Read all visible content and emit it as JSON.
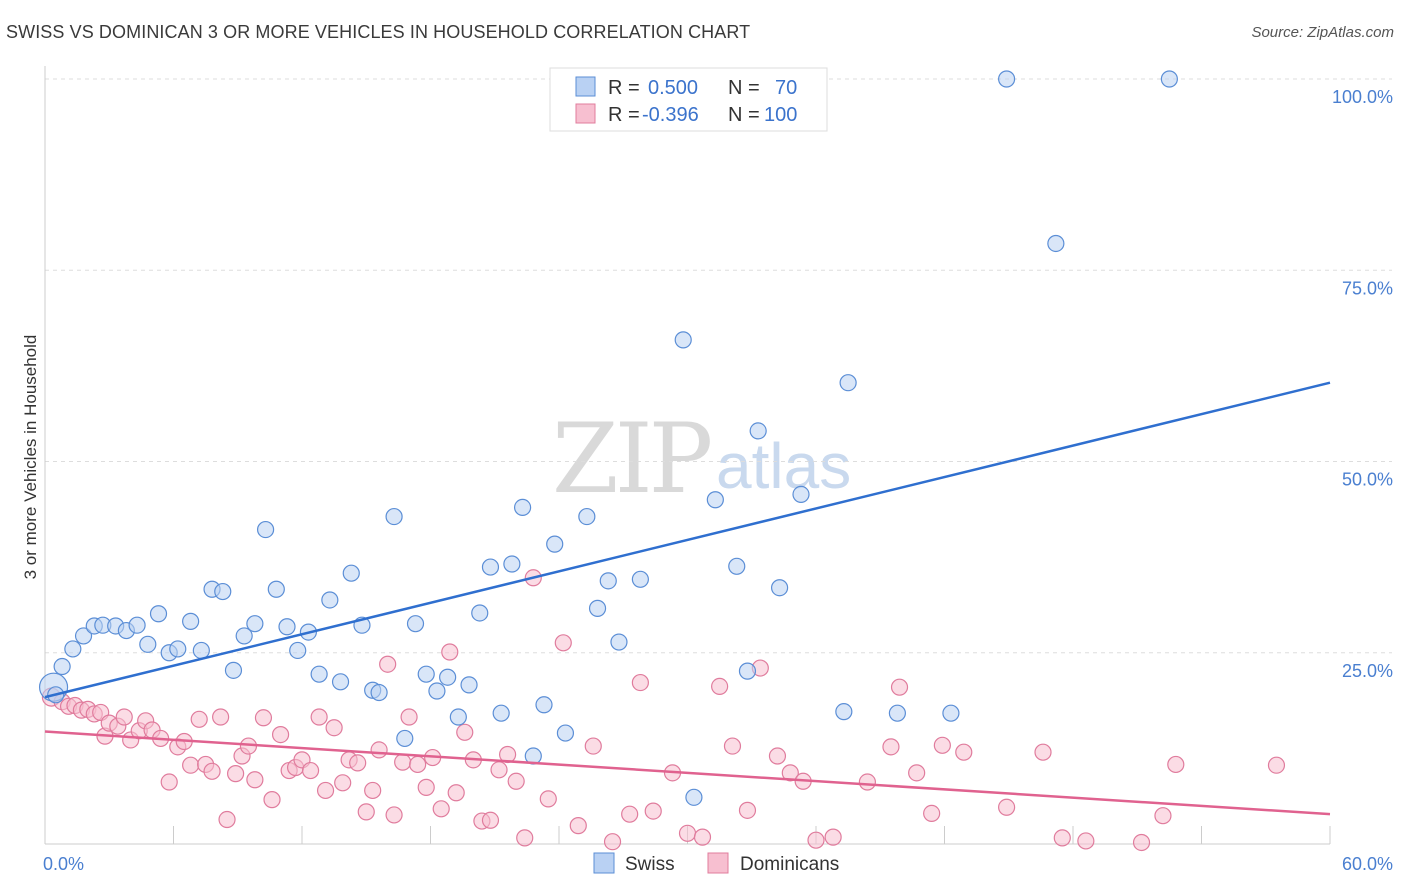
{
  "header": {
    "title": "SWISS VS DOMINICAN 3 OR MORE VEHICLES IN HOUSEHOLD CORRELATION CHART",
    "source": "Source: ZipAtlas.com"
  },
  "watermark": {
    "zip": "ZIP",
    "atlas": "atlas"
  },
  "colors": {
    "swiss_fill": "#b9d1f3",
    "swiss_stroke": "#5b8ed6",
    "swiss_line": "#2f6fcf",
    "dom_fill": "#f7bfd0",
    "dom_stroke": "#e07c9d",
    "dom_line": "#e0628f",
    "grid": "#dddddd",
    "axis_label": "#4a7fd0"
  },
  "chart_data": {
    "type": "scatter",
    "title": "SWISS VS DOMINICAN 3 OR MORE VEHICLES IN HOUSEHOLD CORRELATION CHART",
    "xlabel": "",
    "ylabel": "3 or more Vehicles in Household",
    "xlim": [
      0,
      60
    ],
    "ylim": [
      0,
      100
    ],
    "x_tick_labels": [
      "0.0%",
      "60.0%"
    ],
    "y_ticks": [
      25,
      50,
      75,
      100
    ],
    "y_tick_labels": [
      "25.0%",
      "50.0%",
      "75.0%",
      "100.0%"
    ],
    "grid": true,
    "legend": {
      "position": "top-center",
      "entries": [
        {
          "name": "Swiss",
          "r_label": "R =",
          "r": "0.500",
          "n_label": "N =",
          "n": "70"
        },
        {
          "name": "Dominicans",
          "r_label": "R =",
          "r": "-0.396",
          "n_label": "N =",
          "n": "100"
        }
      ]
    },
    "series": [
      {
        "name": "Swiss",
        "trend": {
          "x": [
            0,
            60
          ],
          "y": [
            19.2,
            60.3
          ]
        },
        "points": [
          [
            0.4,
            20.5
          ],
          [
            0.5,
            19.5
          ],
          [
            0.8,
            23.2
          ],
          [
            1.3,
            25.5
          ],
          [
            1.8,
            27.2
          ],
          [
            2.3,
            28.5
          ],
          [
            2.7,
            28.6
          ],
          [
            3.3,
            28.5
          ],
          [
            3.8,
            27.9
          ],
          [
            4.3,
            28.6
          ],
          [
            4.8,
            26.1
          ],
          [
            5.3,
            30.1
          ],
          [
            5.8,
            25.0
          ],
          [
            6.2,
            25.5
          ],
          [
            6.8,
            29.1
          ],
          [
            7.3,
            25.3
          ],
          [
            7.8,
            33.3
          ],
          [
            8.3,
            33.0
          ],
          [
            8.8,
            22.7
          ],
          [
            9.3,
            27.2
          ],
          [
            9.8,
            28.8
          ],
          [
            10.3,
            41.1
          ],
          [
            10.8,
            33.3
          ],
          [
            11.3,
            28.4
          ],
          [
            11.8,
            25.3
          ],
          [
            12.3,
            27.7
          ],
          [
            12.8,
            22.2
          ],
          [
            13.3,
            31.9
          ],
          [
            13.8,
            21.2
          ],
          [
            14.3,
            35.4
          ],
          [
            14.8,
            28.6
          ],
          [
            15.3,
            20.1
          ],
          [
            15.6,
            19.8
          ],
          [
            16.3,
            42.8
          ],
          [
            16.8,
            13.8
          ],
          [
            17.3,
            28.8
          ],
          [
            17.8,
            22.2
          ],
          [
            18.3,
            20.0
          ],
          [
            18.8,
            21.8
          ],
          [
            19.3,
            16.6
          ],
          [
            19.8,
            20.8
          ],
          [
            20.3,
            30.2
          ],
          [
            20.8,
            36.2
          ],
          [
            21.3,
            17.1
          ],
          [
            21.8,
            36.6
          ],
          [
            22.3,
            44.0
          ],
          [
            22.8,
            11.5
          ],
          [
            23.3,
            18.2
          ],
          [
            23.8,
            39.2
          ],
          [
            24.3,
            14.5
          ],
          [
            25.3,
            42.8
          ],
          [
            25.8,
            30.8
          ],
          [
            26.3,
            34.4
          ],
          [
            26.8,
            26.4
          ],
          [
            27.8,
            34.6
          ],
          [
            29.8,
            65.9
          ],
          [
            30.3,
            6.1
          ],
          [
            31.3,
            45.0
          ],
          [
            32.3,
            36.3
          ],
          [
            32.8,
            22.6
          ],
          [
            33.3,
            54.0
          ],
          [
            34.3,
            33.5
          ],
          [
            35.3,
            45.7
          ],
          [
            37.5,
            60.3
          ],
          [
            37.3,
            17.3
          ],
          [
            39.8,
            17.1
          ],
          [
            42.3,
            17.1
          ],
          [
            44.9,
            100.0
          ],
          [
            47.2,
            78.5
          ],
          [
            52.5,
            100.0
          ]
        ]
      },
      {
        "name": "Dominicans",
        "trend": {
          "x": [
            0,
            60
          ],
          "y": [
            14.7,
            3.9
          ]
        },
        "points": [
          [
            0.3,
            19.2
          ],
          [
            0.8,
            18.6
          ],
          [
            1.1,
            18.0
          ],
          [
            1.4,
            18.1
          ],
          [
            1.7,
            17.5
          ],
          [
            2.0,
            17.6
          ],
          [
            2.3,
            17.0
          ],
          [
            2.6,
            17.2
          ],
          [
            2.8,
            14.1
          ],
          [
            3.0,
            15.8
          ],
          [
            3.4,
            15.4
          ],
          [
            3.7,
            16.6
          ],
          [
            4.0,
            13.6
          ],
          [
            4.4,
            14.8
          ],
          [
            4.7,
            16.1
          ],
          [
            5.0,
            14.9
          ],
          [
            5.4,
            13.8
          ],
          [
            5.8,
            8.1
          ],
          [
            6.2,
            12.7
          ],
          [
            6.5,
            13.4
          ],
          [
            6.8,
            10.3
          ],
          [
            7.2,
            16.3
          ],
          [
            7.5,
            10.4
          ],
          [
            7.8,
            9.5
          ],
          [
            8.2,
            16.6
          ],
          [
            8.5,
            3.2
          ],
          [
            8.9,
            9.2
          ],
          [
            9.2,
            11.5
          ],
          [
            9.5,
            12.8
          ],
          [
            9.8,
            8.4
          ],
          [
            10.2,
            16.5
          ],
          [
            10.6,
            5.8
          ],
          [
            11.0,
            14.3
          ],
          [
            11.4,
            9.6
          ],
          [
            11.7,
            10.0
          ],
          [
            12.0,
            11.0
          ],
          [
            12.4,
            9.6
          ],
          [
            12.8,
            16.6
          ],
          [
            13.1,
            7.0
          ],
          [
            13.5,
            15.2
          ],
          [
            13.9,
            8.0
          ],
          [
            14.2,
            11.0
          ],
          [
            14.6,
            10.6
          ],
          [
            15.0,
            4.2
          ],
          [
            15.3,
            7.0
          ],
          [
            15.6,
            12.3
          ],
          [
            16.0,
            23.5
          ],
          [
            16.3,
            3.8
          ],
          [
            16.7,
            10.7
          ],
          [
            17.0,
            16.6
          ],
          [
            17.4,
            10.4
          ],
          [
            17.8,
            7.4
          ],
          [
            18.1,
            11.3
          ],
          [
            18.5,
            4.6
          ],
          [
            18.9,
            25.1
          ],
          [
            19.2,
            6.7
          ],
          [
            19.6,
            14.6
          ],
          [
            20.0,
            11.0
          ],
          [
            20.4,
            3.0
          ],
          [
            20.8,
            3.1
          ],
          [
            21.2,
            9.7
          ],
          [
            21.6,
            11.7
          ],
          [
            22.0,
            8.2
          ],
          [
            22.4,
            0.8
          ],
          [
            22.8,
            34.8
          ],
          [
            23.5,
            5.9
          ],
          [
            24.2,
            26.3
          ],
          [
            24.9,
            2.4
          ],
          [
            25.6,
            12.8
          ],
          [
            26.5,
            0.3
          ],
          [
            27.3,
            3.9
          ],
          [
            27.8,
            21.1
          ],
          [
            28.4,
            4.3
          ],
          [
            29.3,
            9.3
          ],
          [
            30.0,
            1.4
          ],
          [
            30.7,
            0.9
          ],
          [
            31.5,
            20.6
          ],
          [
            32.1,
            12.8
          ],
          [
            32.8,
            4.4
          ],
          [
            33.4,
            23.0
          ],
          [
            34.2,
            11.5
          ],
          [
            34.8,
            9.3
          ],
          [
            35.4,
            8.2
          ],
          [
            36.0,
            0.5
          ],
          [
            36.8,
            0.9
          ],
          [
            38.4,
            8.1
          ],
          [
            39.5,
            12.7
          ],
          [
            39.9,
            20.5
          ],
          [
            40.7,
            9.3
          ],
          [
            41.4,
            4.0
          ],
          [
            41.9,
            12.9
          ],
          [
            42.9,
            12.0
          ],
          [
            44.9,
            4.8
          ],
          [
            46.6,
            12.0
          ],
          [
            47.5,
            0.8
          ],
          [
            48.6,
            0.4
          ],
          [
            51.2,
            0.2
          ],
          [
            52.2,
            3.7
          ],
          [
            52.8,
            10.4
          ],
          [
            57.5,
            10.3
          ]
        ]
      }
    ]
  }
}
